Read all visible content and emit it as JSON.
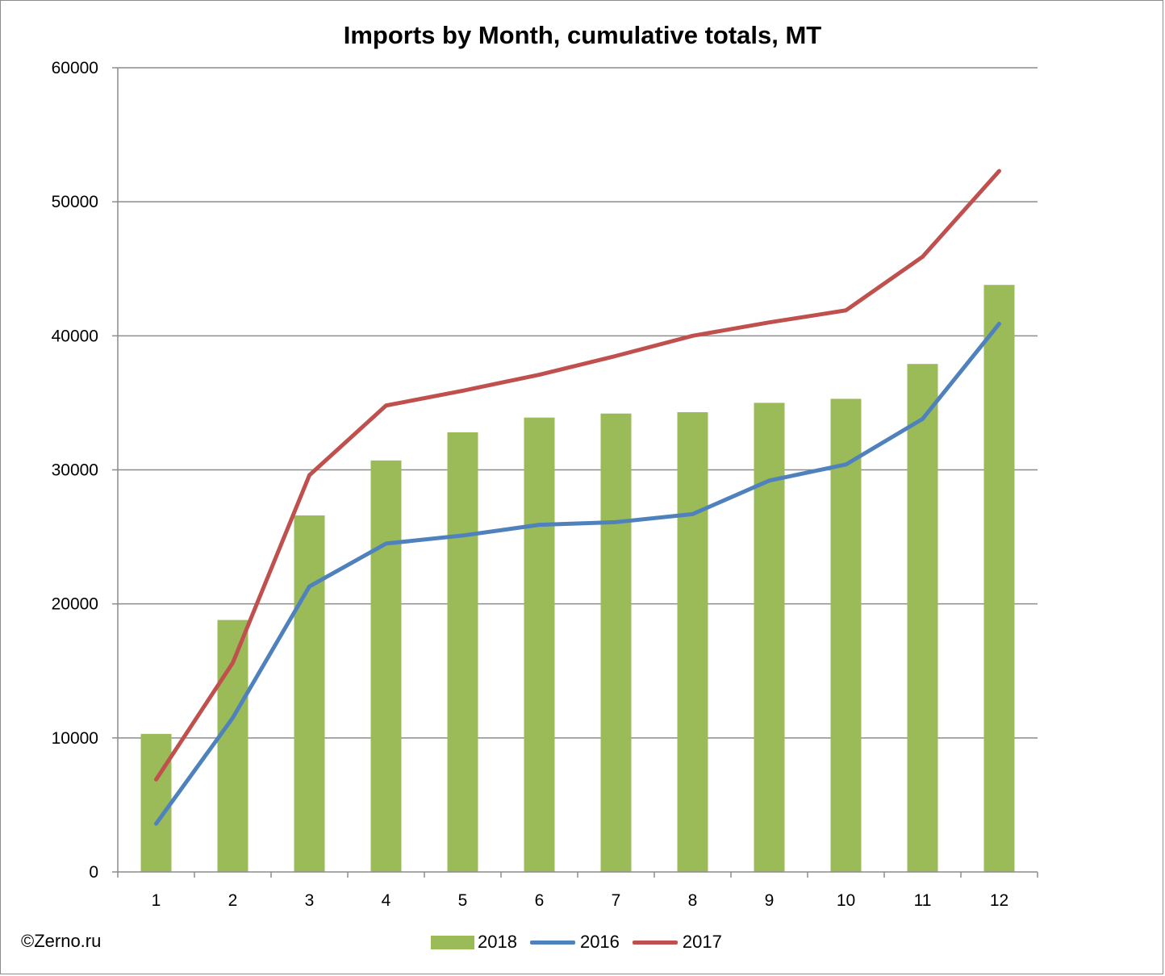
{
  "credit": "©Zerno.ru",
  "chart_data": {
    "type": "bar",
    "title": "Imports by Month, cumulative totals, MT",
    "xlabel": "",
    "ylabel": "",
    "ylim": [
      0,
      60000
    ],
    "yticks": [
      0,
      10000,
      20000,
      30000,
      40000,
      50000,
      60000
    ],
    "grid": true,
    "legend_position": "bottom",
    "categories": [
      "1",
      "2",
      "3",
      "4",
      "5",
      "6",
      "7",
      "8",
      "9",
      "10",
      "11",
      "12"
    ],
    "series": [
      {
        "name": "2018",
        "kind": "bar",
        "color": "#9bbb59",
        "values": [
          10300,
          18800,
          26600,
          30700,
          32800,
          33900,
          34200,
          34300,
          35000,
          35300,
          37900,
          43800
        ]
      },
      {
        "name": "2016",
        "kind": "line",
        "color": "#4f81bd",
        "values": [
          3600,
          11500,
          21300,
          24500,
          25100,
          25900,
          26100,
          26700,
          29200,
          30400,
          33800,
          40900
        ]
      },
      {
        "name": "2017",
        "kind": "line",
        "color": "#c0504d",
        "values": [
          6900,
          15600,
          29600,
          34800,
          35900,
          37100,
          38500,
          40000,
          41000,
          41900,
          45900,
          52300
        ]
      }
    ]
  }
}
